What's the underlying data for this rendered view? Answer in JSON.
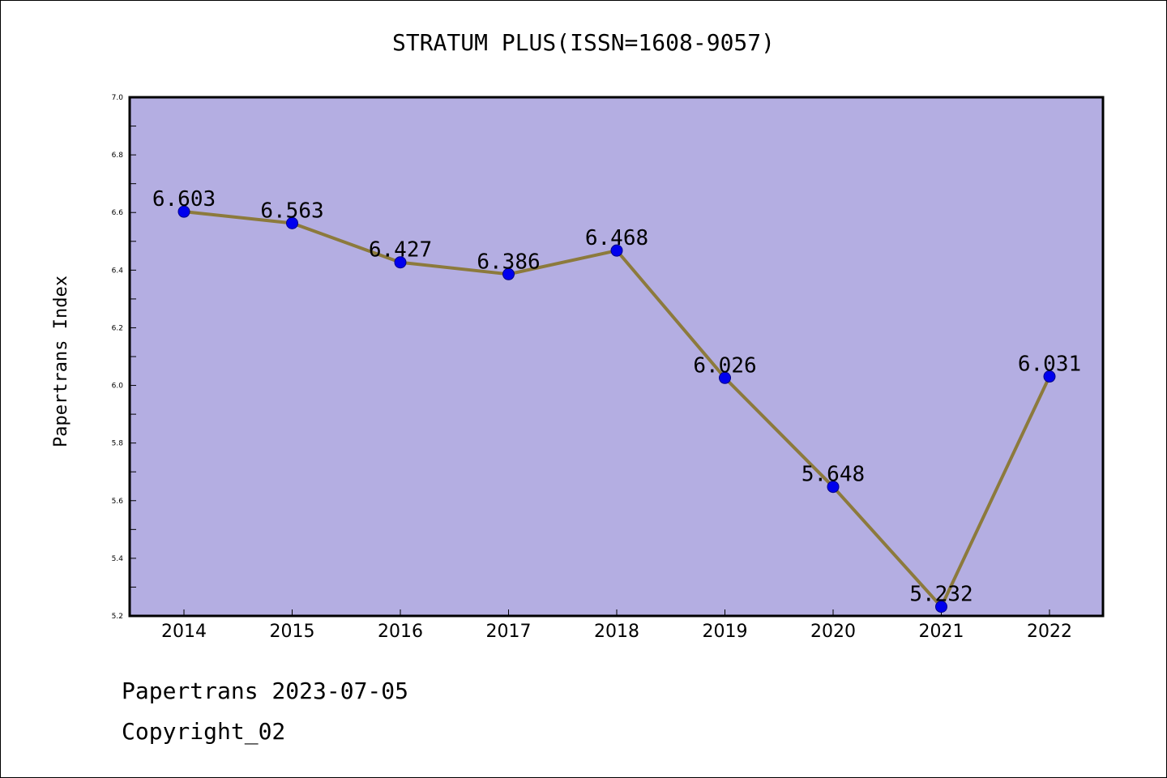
{
  "chart_data": {
    "type": "line",
    "title": "STRATUM PLUS(ISSN=1608-9057)",
    "ylabel": "Papertrans Index",
    "xlabel": "",
    "categories": [
      "2014",
      "2015",
      "2016",
      "2017",
      "2018",
      "2019",
      "2020",
      "2021",
      "2022"
    ],
    "series": [
      {
        "values": [
          6.603,
          6.563,
          6.427,
          6.386,
          6.468,
          6.026,
          5.648,
          5.232,
          6.031
        ],
        "data_labels": [
          "6.603",
          "6.563",
          "6.427",
          "6.386",
          "6.468",
          "6.026",
          "5.648",
          "5.232",
          "6.031"
        ]
      }
    ],
    "ylim": [
      5.2,
      7.0
    ],
    "yticks": [
      "5.2",
      "5.4",
      "5.6",
      "5.8",
      "6.0",
      "6.2",
      "6.4",
      "6.6",
      "6.8",
      "7.0"
    ],
    "grid": false,
    "legend": "none",
    "colors": {
      "plot_background": "#b4aee2",
      "line": "#8c7a3c",
      "marker": "#0000ee"
    }
  },
  "footer": {
    "date_text": "Papertrans 2023-07-05",
    "copyright_text": "Copyright_02"
  }
}
